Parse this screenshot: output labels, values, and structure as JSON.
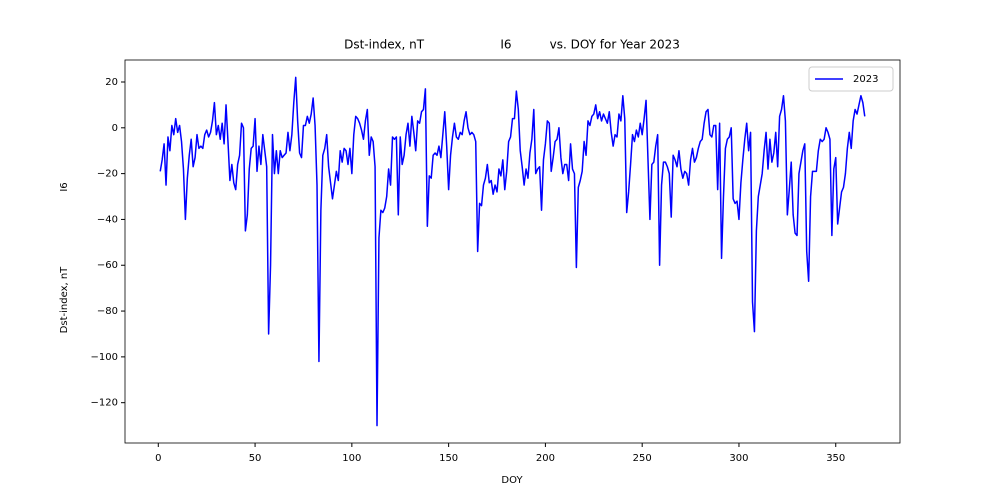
{
  "chart_data": {
    "type": "line",
    "title": "Dst-index, nT                    I6          vs. DOY for Year 2023",
    "x_label": "DOY",
    "y_labels": [
      "I6",
      "Dst-index, nT"
    ],
    "legend": "upper right",
    "grid": false,
    "xlim": [
      -17.2,
      383.2
    ],
    "ylim": [
      -137.6,
      29.6
    ],
    "xticks": [
      0,
      50,
      100,
      150,
      200,
      250,
      300,
      350
    ],
    "yticks": [
      {
        "value": -120,
        "label": "−120"
      },
      {
        "value": -100,
        "label": "−100"
      },
      {
        "value": -80,
        "label": "−80"
      },
      {
        "value": -60,
        "label": "−60"
      },
      {
        "value": -40,
        "label": "−40"
      },
      {
        "value": -20,
        "label": "−20"
      },
      0,
      20
    ],
    "x": [
      1,
      2,
      3,
      4,
      5,
      6,
      7,
      8,
      9,
      10,
      11,
      12,
      13,
      14,
      15,
      16,
      17,
      18,
      19,
      20,
      21,
      22,
      23,
      24,
      25,
      26,
      27,
      28,
      29,
      30,
      31,
      32,
      33,
      34,
      35,
      36,
      37,
      38,
      39,
      40,
      41,
      42,
      43,
      44,
      45,
      46,
      47,
      48,
      49,
      50,
      51,
      52,
      53,
      54,
      55,
      56,
      57,
      58,
      59,
      60,
      61,
      62,
      63,
      64,
      65,
      66,
      67,
      68,
      69,
      70,
      71,
      72,
      73,
      74,
      75,
      76,
      77,
      78,
      79,
      80,
      81,
      82,
      83,
      84,
      85,
      86,
      87,
      88,
      89,
      90,
      91,
      92,
      93,
      94,
      95,
      96,
      97,
      98,
      99,
      100,
      101,
      102,
      103,
      104,
      105,
      106,
      107,
      108,
      109,
      110,
      111,
      112,
      113,
      114,
      115,
      116,
      117,
      118,
      119,
      120,
      121,
      122,
      123,
      124,
      125,
      126,
      127,
      128,
      129,
      130,
      131,
      132,
      133,
      134,
      135,
      136,
      137,
      138,
      139,
      140,
      141,
      142,
      143,
      144,
      145,
      146,
      147,
      148,
      149,
      150,
      151,
      152,
      153,
      154,
      155,
      156,
      157,
      158,
      159,
      160,
      161,
      162,
      163,
      164,
      165,
      166,
      167,
      168,
      169,
      170,
      171,
      172,
      173,
      174,
      175,
      176,
      177,
      178,
      179,
      180,
      181,
      182,
      183,
      184,
      185,
      186,
      187,
      188,
      189,
      190,
      191,
      192,
      193,
      194,
      195,
      196,
      197,
      198,
      199,
      200,
      201,
      202,
      203,
      204,
      205,
      206,
      207,
      208,
      209,
      210,
      211,
      212,
      213,
      214,
      215,
      216,
      217,
      218,
      219,
      220,
      221,
      222,
      223,
      224,
      225,
      226,
      227,
      228,
      229,
      230,
      231,
      232,
      233,
      234,
      235,
      236,
      237,
      238,
      239,
      240,
      241,
      242,
      243,
      244,
      245,
      246,
      247,
      248,
      249,
      250,
      251,
      252,
      253,
      254,
      255,
      256,
      257,
      258,
      259,
      260,
      261,
      262,
      263,
      264,
      265,
      266,
      267,
      268,
      269,
      270,
      271,
      272,
      273,
      274,
      275,
      276,
      277,
      278,
      279,
      280,
      281,
      282,
      283,
      284,
      285,
      286,
      287,
      288,
      289,
      290,
      291,
      292,
      293,
      294,
      295,
      296,
      297,
      298,
      299,
      300,
      301,
      302,
      303,
      304,
      305,
      306,
      307,
      308,
      309,
      310,
      311,
      312,
      313,
      314,
      315,
      316,
      317,
      318,
      319,
      320,
      321,
      322,
      323,
      324,
      325,
      326,
      327,
      328,
      329,
      330,
      331,
      332,
      333,
      334,
      335,
      336,
      337,
      338,
      339,
      340,
      341,
      342,
      343,
      344,
      345,
      346,
      347,
      348,
      349,
      350,
      351,
      352,
      353,
      354,
      355,
      356,
      357,
      358,
      359,
      360,
      361,
      362,
      363,
      364,
      365
    ],
    "series": [
      {
        "name": "2023",
        "color": "#0000ff",
        "values": [
          -19,
          -14,
          -7,
          -25,
          -4,
          -10,
          1,
          -3,
          4,
          -2,
          1,
          -6,
          -18,
          -40,
          -22,
          -12,
          -5,
          -17,
          -13,
          -3,
          -9,
          -8,
          -9,
          -3,
          -1,
          -4,
          -2,
          3,
          11,
          -3,
          1,
          -5,
          2,
          -7,
          10,
          -6,
          -23,
          -16,
          -24,
          -27,
          -16,
          -12,
          2,
          0,
          -45,
          -38,
          -18,
          -9,
          -8,
          4,
          -19,
          -8,
          -16,
          -3,
          -10,
          -17,
          -90,
          -60,
          -3,
          -20,
          -10,
          -20,
          -10,
          -13,
          -12,
          -11,
          -2,
          -10,
          -3,
          11,
          22,
          3,
          -11,
          -13,
          1,
          1,
          5,
          2,
          6,
          13,
          1,
          -25,
          -102,
          -36,
          -12,
          -9,
          -3,
          -17,
          -24,
          -31,
          -25,
          -19,
          -23,
          -10,
          -15,
          -9,
          -10,
          -16,
          -9,
          -20,
          -3,
          5,
          4,
          2,
          -1,
          -5,
          3,
          8,
          -12,
          -4,
          -6,
          -17,
          -130,
          -48,
          -36,
          -37,
          -35,
          -30,
          -18,
          -25,
          -4,
          -5,
          -4,
          -38,
          -4,
          -16,
          -12,
          -3,
          2,
          -8,
          5,
          -2,
          -10,
          3,
          2,
          7,
          8,
          17,
          -43,
          -21,
          -22,
          -12,
          -11,
          -12,
          -8,
          -13,
          -3,
          7,
          -8,
          -27,
          -12,
          -4,
          2,
          -4,
          -5,
          -2,
          -3,
          3,
          7,
          0,
          -3,
          -2,
          -3,
          -6,
          -54,
          -33,
          -34,
          -25,
          -22,
          -16,
          -24,
          -23,
          -29,
          -25,
          -28,
          -18,
          -21,
          -14,
          -27,
          -19,
          -6,
          -4,
          4,
          4,
          16,
          8,
          -10,
          -17,
          -25,
          -18,
          -22,
          -11,
          -5,
          8,
          -20,
          -18,
          -17,
          -36,
          -14,
          -7,
          3,
          2,
          -19,
          -13,
          -6,
          -5,
          0,
          -13,
          -20,
          -16,
          -16,
          -23,
          -7,
          -18,
          -20,
          -61,
          -26,
          -23,
          -19,
          -6,
          -12,
          3,
          1,
          5,
          6,
          10,
          4,
          7,
          3,
          6,
          4,
          2,
          7,
          -2,
          -8,
          -3,
          -4,
          6,
          3,
          14,
          4,
          -37,
          -28,
          -16,
          -3,
          -6,
          -1,
          -4,
          2,
          -3,
          4,
          12,
          -14,
          -40,
          -16,
          -15,
          -8,
          -3,
          -60,
          -25,
          -15,
          -15,
          -17,
          -20,
          -39,
          -12,
          -14,
          -17,
          -10,
          -18,
          -22,
          -19,
          -20,
          -25,
          -14,
          -9,
          -15,
          -13,
          -9,
          -6,
          -5,
          2,
          7,
          8,
          -3,
          -4,
          1,
          1,
          -27,
          2,
          -57,
          -30,
          -9,
          -5,
          -4,
          0,
          -31,
          -33,
          -32,
          -40,
          -24,
          -14,
          -5,
          2,
          -10,
          -2,
          -76,
          -89,
          -45,
          -30,
          -25,
          -20,
          -10,
          -2,
          -18,
          -5,
          -15,
          -11,
          -2,
          -17,
          5,
          8,
          14,
          3,
          -38,
          -27,
          -15,
          -38,
          -46,
          -47,
          -20,
          -15,
          -10,
          -7,
          -54,
          -67,
          -30,
          -19,
          -19,
          -19,
          -10,
          -5,
          -6,
          -5,
          0,
          -2,
          -5,
          -47,
          -18,
          -13,
          -42,
          -35,
          -28,
          -26,
          -20,
          -9,
          -2,
          -9,
          3,
          8,
          6,
          10,
          14,
          11,
          5
        ]
      }
    ]
  }
}
